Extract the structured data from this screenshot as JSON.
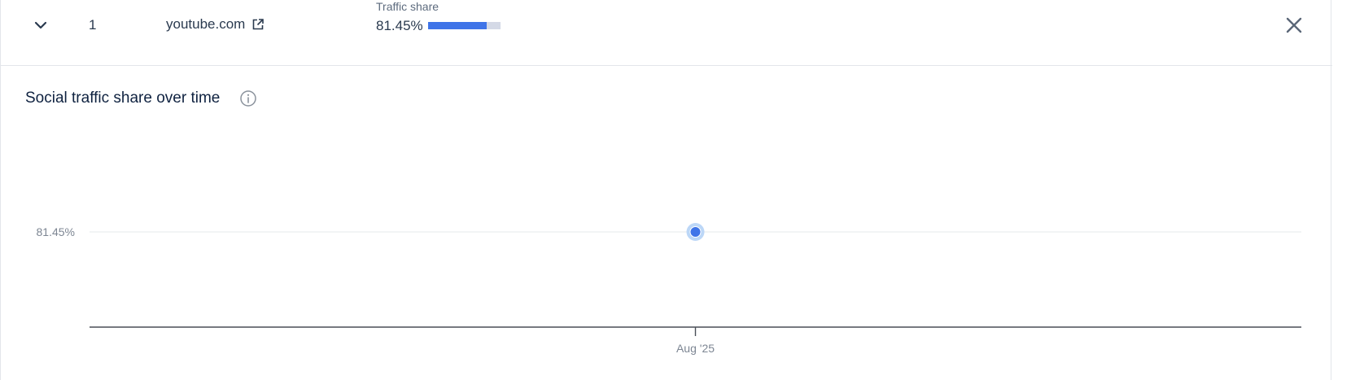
{
  "row": {
    "rank": "1",
    "domain": "youtube.com",
    "traffic_share_label": "Traffic share",
    "traffic_share_value": "81.45%",
    "traffic_share_fraction": 0.8145
  },
  "chart_section": {
    "title": "Social traffic share over time"
  },
  "icons": {
    "expand": "chevron-down-icon",
    "external": "external-link-icon",
    "close": "close-icon",
    "info": "info-icon"
  },
  "colors": {
    "accent": "#3f74e8",
    "bar_track": "#d4d9e6",
    "point_halo": "#bcd7f7",
    "text_dark": "#2a3a4f",
    "axis": "#4a4f57",
    "gridline": "#e6e8eb"
  },
  "chart_data": {
    "type": "line",
    "title": "Social traffic share over time",
    "xlabel": "",
    "ylabel": "",
    "x": [
      "Aug '25"
    ],
    "series": [
      {
        "values": [
          81.45
        ]
      }
    ],
    "y_tick_labels": [
      "81.45%"
    ],
    "x_tick_labels": [
      "Aug '25"
    ],
    "grid": true,
    "legend": "none"
  }
}
